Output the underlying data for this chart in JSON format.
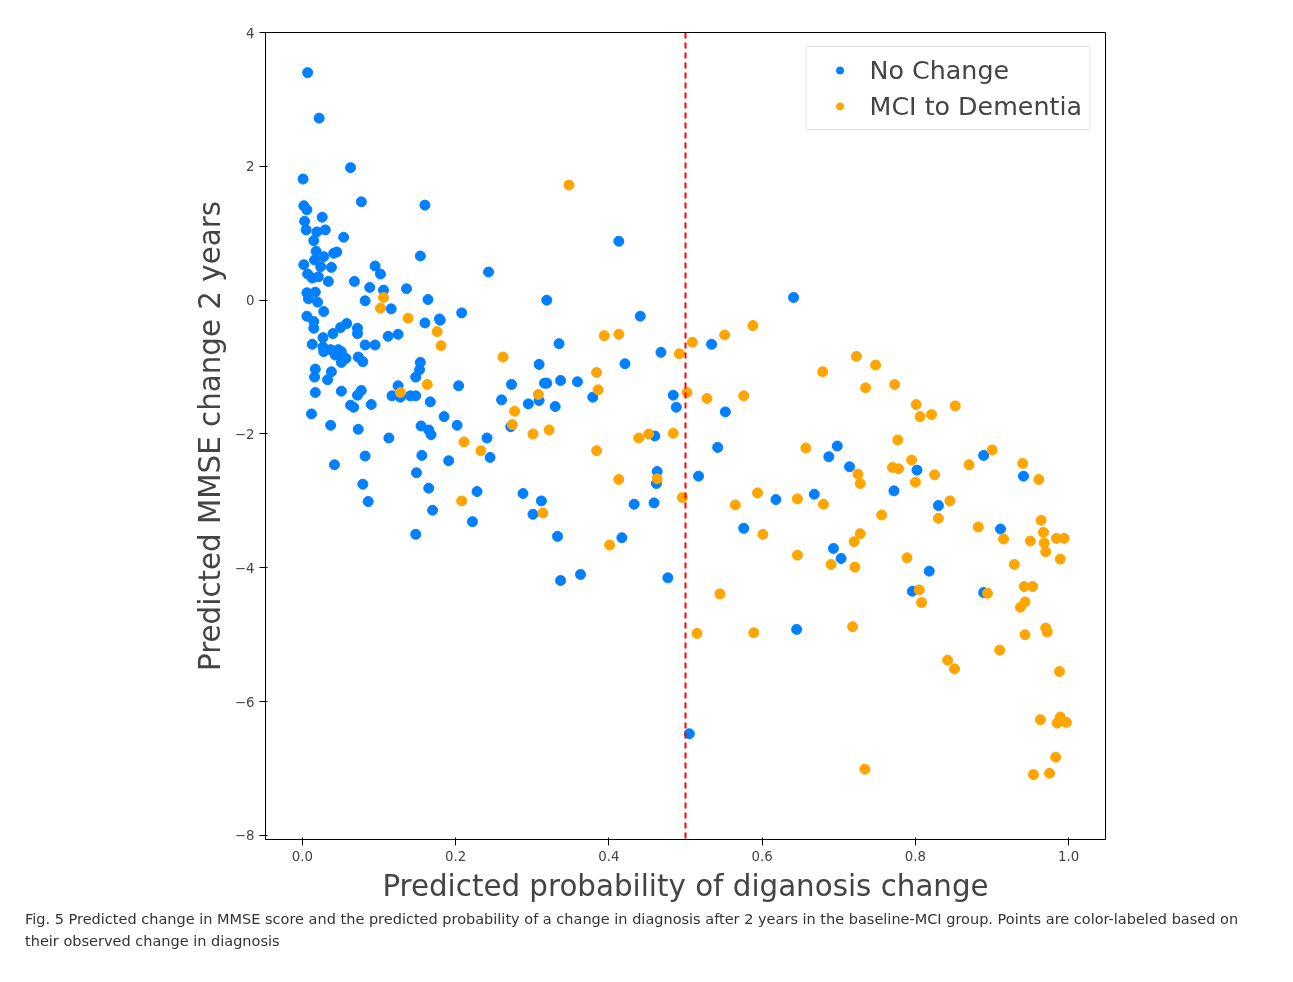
{
  "chart_data": {
    "type": "scatter",
    "xlabel": "Predicted probability of diganosis change",
    "ylabel": "Predicted MMSE change 2 years",
    "xlim": [
      -0.048,
      1.048
    ],
    "ylim": [
      -8.06,
      4.0
    ],
    "xticks": [
      {
        "value": 0,
        "label": "0.0"
      },
      {
        "value": 0.2,
        "label": "0.2"
      },
      {
        "value": 0.4,
        "label": "0.4"
      },
      {
        "value": 0.6,
        "label": "0.6"
      },
      {
        "value": 0.8,
        "label": "0.8"
      },
      {
        "value": 1,
        "label": "1.0"
      }
    ],
    "yticks": [
      {
        "value": -8,
        "label": "−8"
      },
      {
        "value": -6,
        "label": "−6"
      },
      {
        "value": -4,
        "label": "−4"
      },
      {
        "value": -2,
        "label": "−2"
      },
      0,
      2,
      4
    ],
    "grid": false,
    "legend": "top right",
    "marker": "circle",
    "ref_lines": [
      {
        "axis": "x",
        "value": 0.5,
        "label": null,
        "color": "#ff0000",
        "line_style": "dashed"
      }
    ],
    "annotations": [
      "Fig. 5 Predicted change in MMSE score and the predicted probability of a change in diagnosis after 2 years in the baseline-MCI group. Points are color-labeled based on their observed change in diagnosis"
    ],
    "series": [
      {
        "name": "No Change",
        "color": "#0080ff",
        "x": [
          0.007,
          0.022,
          0.063,
          0.001,
          0.077,
          0.16,
          0.002,
          0.006,
          0.026,
          0.003,
          0.005,
          0.019,
          0.03,
          0.054,
          0.015,
          0.018,
          0.028,
          0.016,
          0.041,
          0.045,
          0.154,
          0.002,
          0.024,
          0.038,
          0.095,
          0.102,
          0.007,
          0.243,
          0.013,
          0.021,
          0.034,
          0.068,
          0.088,
          0.106,
          0.136,
          0.006,
          0.017,
          0.008,
          0.02,
          0.082,
          0.164,
          0.116,
          0.028,
          0.006,
          0.179,
          0.208,
          0.16,
          0.18,
          0.015,
          0.015,
          0.058,
          0.05,
          0.04,
          0.072,
          0.072,
          0.027,
          0.013,
          0.027,
          0.037,
          0.047,
          0.051,
          0.028,
          0.043,
          0.057,
          0.051,
          0.073,
          0.079,
          0.082,
          0.095,
          0.112,
          0.125,
          0.154,
          0.153,
          0.148,
          0.017,
          0.016,
          0.038,
          0.033,
          0.204,
          0.125,
          0.117,
          0.128,
          0.141,
          0.148,
          0.017,
          0.051,
          0.077,
          0.072,
          0.063,
          0.067,
          0.09,
          0.167,
          0.185,
          0.012,
          0.037,
          0.073,
          0.113,
          0.155,
          0.165,
          0.168,
          0.202,
          0.241,
          0.245,
          0.042,
          0.082,
          0.156,
          0.191,
          0.149,
          0.079,
          0.165,
          0.228,
          0.086,
          0.17,
          0.222,
          0.148,
          0.413,
          0.319,
          0.441,
          0.641,
          0.335,
          0.468,
          0.534,
          0.309,
          0.421,
          0.273,
          0.316,
          0.319,
          0.337,
          0.359,
          0.379,
          0.26,
          0.295,
          0.309,
          0.33,
          0.484,
          0.488,
          0.552,
          0.272,
          0.46,
          0.542,
          0.463,
          0.462,
          0.517,
          0.288,
          0.312,
          0.301,
          0.433,
          0.459,
          0.618,
          0.333,
          0.417,
          0.576,
          0.337,
          0.363,
          0.477,
          0.645,
          0.505,
          0.698,
          0.687,
          0.714,
          0.802,
          0.772,
          0.889,
          0.941,
          0.668,
          0.83,
          0.911,
          0.693,
          0.703,
          0.818,
          0.796,
          0.889
        ],
        "values": [
          3.4,
          2.72,
          1.98,
          1.81,
          1.47,
          1.42,
          1.41,
          1.35,
          1.24,
          1.18,
          1.05,
          1.02,
          1.05,
          0.94,
          0.89,
          0.73,
          0.65,
          0.6,
          0.7,
          0.72,
          0.66,
          0.53,
          0.5,
          0.49,
          0.51,
          0.39,
          0.39,
          0.42,
          0.33,
          0.35,
          0.28,
          0.28,
          0.19,
          0.15,
          0.17,
          0.11,
          0.12,
          0.02,
          -0.03,
          -0.01,
          0.01,
          -0.13,
          -0.17,
          -0.24,
          -0.28,
          -0.19,
          -0.34,
          -0.3,
          -0.32,
          -0.42,
          -0.35,
          -0.41,
          -0.5,
          -0.42,
          -0.5,
          -0.56,
          -0.66,
          -0.7,
          -0.74,
          -0.74,
          -0.77,
          -0.77,
          -0.82,
          -0.87,
          -0.93,
          -0.85,
          -0.92,
          -0.67,
          -0.67,
          -0.54,
          -0.51,
          -0.93,
          -1.04,
          -1.15,
          -1.03,
          -1.15,
          -1.07,
          -1.19,
          -1.28,
          -1.28,
          -1.43,
          -1.45,
          -1.43,
          -1.43,
          -1.38,
          -1.36,
          -1.35,
          -1.42,
          -1.57,
          -1.6,
          -1.56,
          -1.52,
          -1.74,
          -1.7,
          -1.87,
          -1.93,
          -2.06,
          -1.88,
          -1.94,
          -2.01,
          -1.87,
          -2.06,
          -2.35,
          -2.46,
          -2.33,
          -2.32,
          -2.4,
          -2.58,
          -2.75,
          -2.81,
          -2.86,
          -3.01,
          -3.14,
          -3.31,
          -3.5,
          0.88,
          0.0,
          -0.24,
          0.04,
          -0.65,
          -0.78,
          -0.66,
          -0.96,
          -0.95,
          -1.26,
          -1.24,
          -1.24,
          -1.2,
          -1.22,
          -1.45,
          -1.49,
          -1.55,
          -1.5,
          -1.59,
          -1.42,
          -1.6,
          -1.67,
          -1.89,
          -2.03,
          -2.2,
          -2.56,
          -2.74,
          -2.63,
          -2.89,
          -3.0,
          -3.2,
          -3.05,
          -3.03,
          -2.98,
          -3.53,
          -3.55,
          -3.41,
          -4.19,
          -4.1,
          -4.15,
          -4.92,
          -6.48,
          -2.18,
          -2.34,
          -2.49,
          -2.54,
          -2.85,
          -2.32,
          -2.63,
          -2.9,
          -3.07,
          -3.42,
          -3.71,
          -3.86,
          -4.05,
          -4.35,
          -4.37
        ]
      },
      {
        "name": "MCI to Dementia",
        "color": "#ffa500",
        "x": [
          0.106,
          0.102,
          0.138,
          0.176,
          0.181,
          0.163,
          0.128,
          0.211,
          0.233,
          0.208,
          0.348,
          0.394,
          0.413,
          0.262,
          0.492,
          0.509,
          0.551,
          0.588,
          0.384,
          0.386,
          0.308,
          0.277,
          0.502,
          0.528,
          0.576,
          0.274,
          0.301,
          0.322,
          0.439,
          0.452,
          0.484,
          0.384,
          0.463,
          0.413,
          0.314,
          0.496,
          0.565,
          0.594,
          0.646,
          0.401,
          0.601,
          0.646,
          0.545,
          0.515,
          0.589,
          0.723,
          0.748,
          0.679,
          0.735,
          0.773,
          0.801,
          0.806,
          0.821,
          0.852,
          0.777,
          0.657,
          0.725,
          0.728,
          0.77,
          0.778,
          0.795,
          0.8,
          0.825,
          0.87,
          0.9,
          0.94,
          0.961,
          0.68,
          0.756,
          0.845,
          0.83,
          0.882,
          0.915,
          0.964,
          0.967,
          0.95,
          0.968,
          0.984,
          0.994,
          0.97,
          0.989,
          0.728,
          0.72,
          0.69,
          0.721,
          0.789,
          0.929,
          0.942,
          0.953,
          0.943,
          0.937,
          0.805,
          0.808,
          0.894,
          0.718,
          0.943,
          0.97,
          0.972,
          0.91,
          0.842,
          0.851,
          0.988,
          0.963,
          0.989,
          0.985,
          0.997,
          0.983,
          0.734,
          0.954,
          0.975
        ],
        "values": [
          0.04,
          -0.12,
          -0.27,
          -0.47,
          -0.68,
          -1.26,
          -1.38,
          -2.12,
          -2.25,
          -3.0,
          1.72,
          -0.53,
          -0.51,
          -0.85,
          -0.8,
          -0.63,
          -0.52,
          -0.38,
          -1.08,
          -1.34,
          -1.41,
          -1.66,
          -1.38,
          -1.47,
          -1.43,
          -1.86,
          -2.0,
          -1.94,
          -2.06,
          -2.0,
          -1.99,
          -2.25,
          -2.67,
          -2.68,
          -3.18,
          -2.95,
          -3.06,
          -2.88,
          -2.97,
          -3.66,
          -3.5,
          -3.81,
          -4.39,
          -4.98,
          -4.97,
          -0.84,
          -0.97,
          -1.07,
          -1.31,
          -1.26,
          -1.56,
          -1.74,
          -1.71,
          -1.58,
          -2.09,
          -2.21,
          -2.6,
          -2.74,
          -2.5,
          -2.52,
          -2.39,
          -2.72,
          -2.61,
          -2.46,
          -2.24,
          -2.44,
          -2.68,
          -3.05,
          -3.21,
          -3.0,
          -3.26,
          -3.39,
          -3.57,
          -3.29,
          -3.47,
          -3.6,
          -3.63,
          -3.56,
          -3.56,
          -3.76,
          -3.87,
          -3.49,
          -3.61,
          -3.95,
          -3.99,
          -3.85,
          -3.95,
          -4.28,
          -4.28,
          -4.51,
          -4.59,
          -4.33,
          -4.52,
          -4.38,
          -4.88,
          -5.0,
          -4.9,
          -4.96,
          -5.23,
          -5.38,
          -5.51,
          -5.55,
          -6.27,
          -6.23,
          -6.32,
          -6.31,
          -6.83,
          -7.01,
          -7.09,
          -7.07
        ]
      }
    ]
  }
}
